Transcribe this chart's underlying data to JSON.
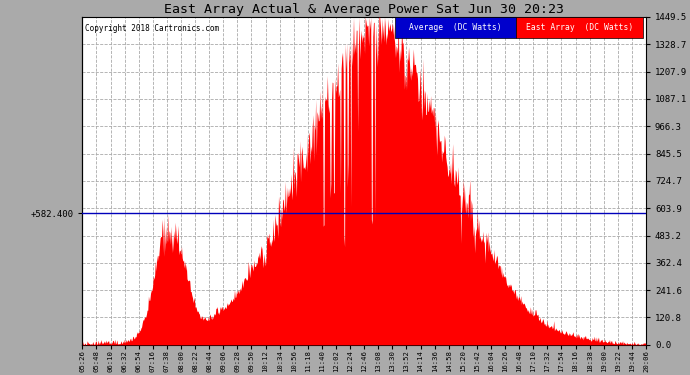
{
  "title": "East Array Actual & Average Power Sat Jun 30 20:23",
  "copyright": "Copyright 2018 Cartronics.com",
  "avg_line_y": 582.4,
  "avg_line_label": "+582.400",
  "y_ticks": [
    0.0,
    120.8,
    241.6,
    362.4,
    483.2,
    603.9,
    724.7,
    845.5,
    966.3,
    1087.1,
    1207.9,
    1328.7,
    1449.5
  ],
  "y_max": 1449.5,
  "y_min": 0.0,
  "fill_color": "#FF0000",
  "line_color": "#FF0000",
  "avg_color": "#0000BB",
  "background_color": "#AAAAAA",
  "plot_bg_color": "#FFFFFF",
  "grid_color": "#AAAAAA",
  "legend_avg_color": "#0000CC",
  "legend_east_color": "#FF0000",
  "legend_avg_label": "Average  (DC Watts)",
  "legend_east_label": "East Array  (DC Watts)",
  "x_tick_labels": [
    "05:26",
    "05:48",
    "06:10",
    "06:32",
    "06:54",
    "07:16",
    "07:38",
    "08:00",
    "08:22",
    "08:44",
    "09:06",
    "09:28",
    "09:50",
    "10:12",
    "10:34",
    "10:56",
    "11:18",
    "11:40",
    "12:02",
    "12:24",
    "12:46",
    "13:08",
    "13:30",
    "13:52",
    "14:14",
    "14:36",
    "14:58",
    "15:20",
    "15:42",
    "16:04",
    "16:26",
    "16:48",
    "17:10",
    "17:32",
    "17:54",
    "18:16",
    "18:38",
    "19:00",
    "19:22",
    "19:44",
    "20:06"
  ]
}
